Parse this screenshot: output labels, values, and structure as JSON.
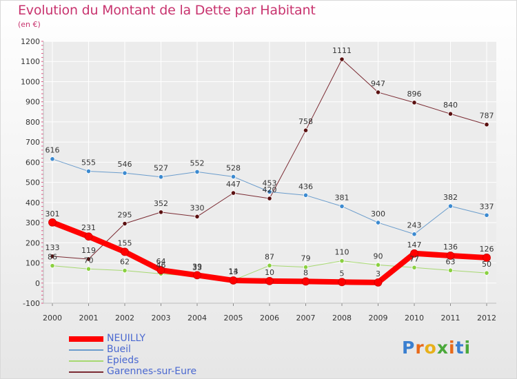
{
  "header": {
    "title": "Evolution du Montant de la Dette par Habitant",
    "subtitle": "(en €)"
  },
  "logo": {
    "text": "Proxiti"
  },
  "colors": {
    "title": "#c8336e",
    "grid": "#ffffff",
    "axis_text": "#333333",
    "tick_marks": "#e05080",
    "legend_text": "#4a68d0"
  },
  "chart_data": {
    "type": "line",
    "title": "Evolution du Montant de la Dette par Habitant",
    "subtitle": "(en €)",
    "xlabel": "",
    "ylabel": "",
    "x": [
      "2000",
      "2001",
      "2002",
      "2003",
      "2004",
      "2005",
      "2006",
      "2007",
      "2008",
      "2009",
      "2010",
      "2011",
      "2012"
    ],
    "yticks": [
      "-100",
      "0",
      "100",
      "200",
      "300",
      "400",
      "500",
      "600",
      "700",
      "800",
      "900",
      "1000",
      "1100",
      "1200"
    ],
    "ylim": [
      -100,
      1200
    ],
    "grid": true,
    "legend_position": "bottom-left",
    "series": [
      {
        "name": "Garennes-sur-Eure",
        "color": "#7a2a32",
        "marker_color": "#5a1010",
        "width": 1,
        "values": [
          133,
          119,
          295,
          352,
          330,
          447,
          420,
          758,
          1111,
          947,
          896,
          840,
          787
        ],
        "labels": [
          "133",
          "119",
          "295",
          "352",
          "330",
          "447",
          "420",
          "758",
          "1111",
          "947",
          "896",
          "840",
          "787"
        ]
      },
      {
        "name": "Bueil",
        "color": "#6a9ccc",
        "marker_color": "#3c8ad0",
        "width": 1,
        "values": [
          616,
          555,
          546,
          527,
          552,
          528,
          453,
          436,
          381,
          300,
          243,
          382,
          337
        ],
        "labels": [
          "616",
          "555",
          "546",
          "527",
          "552",
          "528",
          "453",
          "436",
          "381",
          "300",
          "243",
          "382",
          "337"
        ]
      },
      {
        "name": "Epieds",
        "color": "#a6d870",
        "marker_color": "#8ad040",
        "width": 1,
        "values": [
          86,
          70,
          62,
          46,
          33,
          14,
          87,
          79,
          110,
          90,
          77,
          63,
          50
        ],
        "labels": [
          "86",
          "70",
          "62",
          "46",
          "33",
          "14",
          "87",
          "79",
          "110",
          "90",
          "77",
          "63",
          "50"
        ]
      },
      {
        "name": "NEUILLY",
        "color": "#ff0000",
        "marker_color": "#ff0000",
        "width": 8,
        "values": [
          301,
          231,
          155,
          64,
          39,
          13,
          10,
          8,
          5,
          3,
          147,
          136,
          126
        ],
        "labels": [
          "301",
          "231",
          "155",
          "64",
          "39",
          "13",
          "10",
          "8",
          "5",
          "3",
          "147",
          "136",
          "126"
        ]
      }
    ]
  },
  "legend": {
    "items": [
      {
        "name": "NEUILLY",
        "color": "#ff0000",
        "width": 8
      },
      {
        "name": "Bueil",
        "color": "#6a9ccc",
        "width": 2
      },
      {
        "name": "Epieds",
        "color": "#a6d870",
        "width": 2
      },
      {
        "name": "Garennes-sur-Eure",
        "color": "#7a2a32",
        "width": 2
      }
    ]
  }
}
